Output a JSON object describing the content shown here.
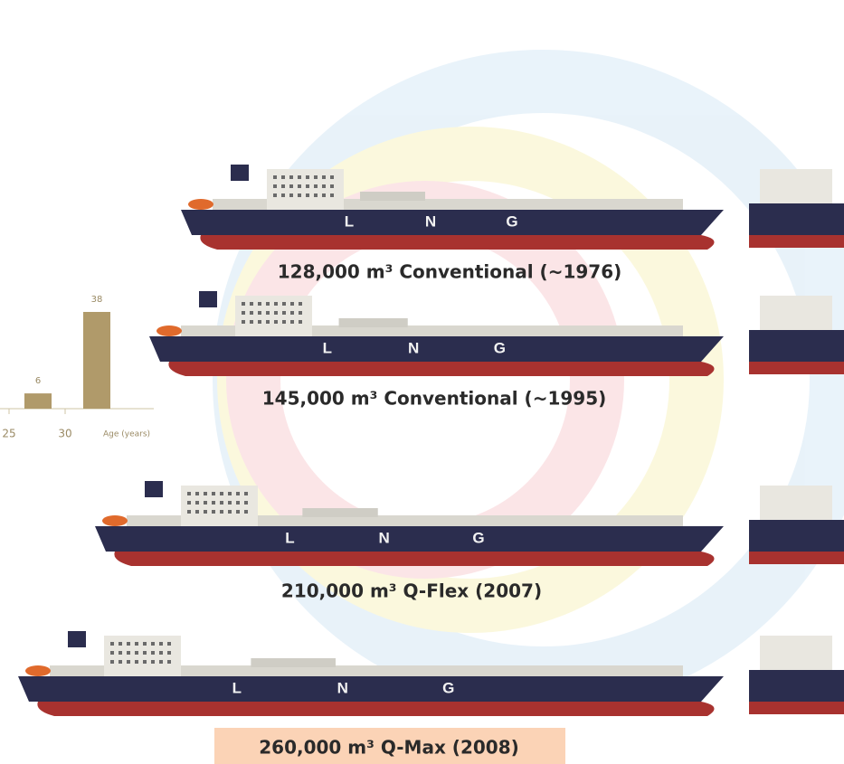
{
  "inset_chart": {
    "type": "bar",
    "values": [
      6,
      38
    ],
    "color": "#b09a6a",
    "xticks": [
      25,
      30
    ],
    "x_label": "Age (years)"
  },
  "ships": [
    {
      "caption": "128,000 m³ Conventional (~1976)",
      "hull_letters": [
        "L",
        "N",
        "G"
      ]
    },
    {
      "caption": "145,000 m³ Conventional (~1995)",
      "hull_letters": [
        "L",
        "N",
        "G"
      ]
    },
    {
      "caption": "210,000 m³ Q-Flex (2007)",
      "hull_letters": [
        "L",
        "N",
        "G"
      ]
    },
    {
      "caption": "260,000 m³ Q-Max (2008)",
      "hull_letters": [
        "L",
        "N",
        "G"
      ]
    }
  ]
}
